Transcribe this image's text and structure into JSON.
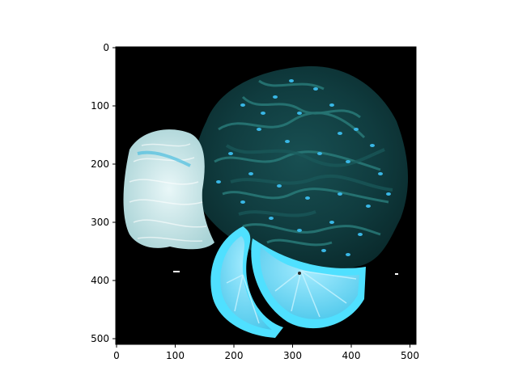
{
  "figure": {
    "image_description_icon": "food-photo-seaweed-salad-noodles-lemon",
    "background_color": "#ffffff",
    "plot_background": "#000000"
  },
  "axes": {
    "x_ticks": [
      "0",
      "100",
      "200",
      "300",
      "400",
      "500"
    ],
    "y_ticks": [
      "0",
      "100",
      "200",
      "300",
      "400",
      "500"
    ],
    "x_range": [
      0,
      512
    ],
    "y_range": [
      512,
      0
    ]
  },
  "colors": {
    "seaweed_dark": "#0d3a3c",
    "seaweed_mid": "#1f6a6a",
    "sesame": "#39b7e6",
    "noodle": "#d6eef0",
    "lemon_rind": "#4fe0ff",
    "lemon_flesh": "#7fd8f5"
  }
}
